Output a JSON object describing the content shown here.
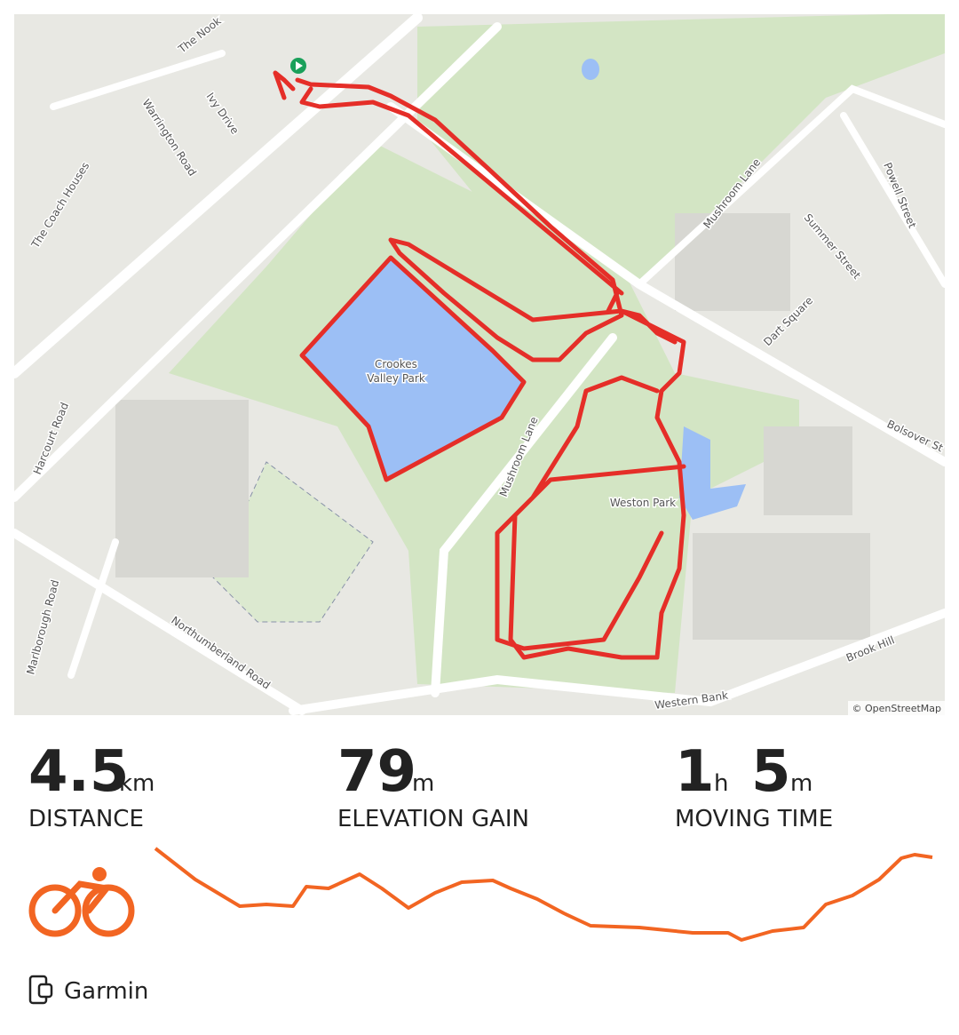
{
  "map": {
    "labels": {
      "the_nook": "The Nook",
      "ivy_drive": "Ivy Drive",
      "warrington_road": "Warrington Road",
      "coach_houses": "The Coach Houses",
      "harcourt_road": "Harcourt Road",
      "crookes_valley_park": [
        "Crookes",
        "Valley Park"
      ],
      "mushroom_lane_1": "Mushroom Lane",
      "mushroom_lane_2": "Mushroom Lane",
      "summer_street": "Summer Street",
      "powell_street": "Powell Street",
      "dart_square": "Dart Square",
      "bolsover": "Bolsover St",
      "weston_park": "Weston Park",
      "marlborough_road": "Marlborough Road",
      "northumberland_road": "Northumberland Road",
      "western_bank": "Western Bank",
      "brook_hill": "Brook Hill"
    },
    "attribution": "© OpenStreetMap"
  },
  "stats": [
    {
      "value": 4.5,
      "unit": "km",
      "label": "DISTANCE"
    },
    {
      "value": 79,
      "unit": "m",
      "label": "ELEVATION GAIN"
    },
    {
      "hours": 1,
      "hours_unit": "h",
      "minutes": 5,
      "minutes_unit": "m",
      "label": "MOVING TIME"
    }
  ],
  "device": "Garmin"
}
